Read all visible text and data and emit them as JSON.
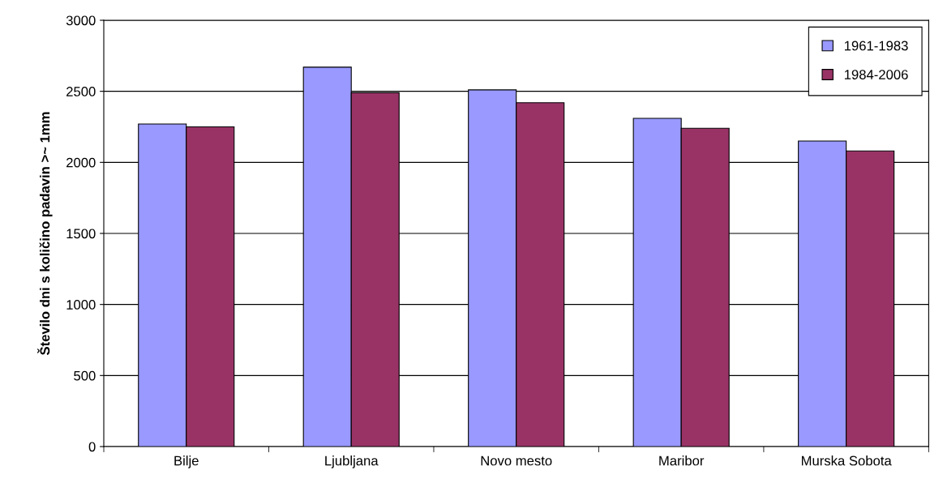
{
  "chart_data": {
    "type": "bar",
    "ylabel": "Število dni s količino padavin >~ 1mm",
    "categories": [
      "Bilje",
      "Ljubljana",
      "Novo mesto",
      "Maribor",
      "Murska Sobota"
    ],
    "series": [
      {
        "name": "1961-1983",
        "color": "#9999ff",
        "values": [
          2270,
          2670,
          2510,
          2310,
          2150
        ]
      },
      {
        "name": "1984-2006",
        "color": "#993366",
        "values": [
          2250,
          2490,
          2420,
          2240,
          2080
        ]
      }
    ],
    "ylim": [
      0,
      3000
    ],
    "yticks": [
      0,
      500,
      1000,
      1500,
      2000,
      2500,
      3000
    ],
    "grid": "y",
    "legend": "top right"
  }
}
